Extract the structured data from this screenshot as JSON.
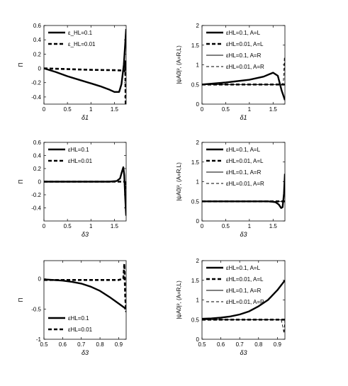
{
  "chart_data": [
    {
      "type": "line",
      "id": "p1",
      "xlabel": "δ1",
      "ylabel": "Π",
      "xlim": [
        0,
        1.75
      ],
      "ylim": [
        -0.5,
        0.6
      ],
      "xticks": [
        "0",
        "0.5",
        "1",
        "1.5"
      ],
      "xtick_values": [
        0,
        0.5,
        1,
        1.5
      ],
      "yticks": [
        "0.6",
        "0.4",
        "0.2",
        "0",
        "-0.2",
        "-0.4"
      ],
      "ytick_values": [
        0.6,
        0.4,
        0.2,
        0,
        -0.2,
        -0.4
      ],
      "legend_position": "top-left",
      "series": [
        {
          "name": "ε_HL=0.1",
          "style": "thick-solid",
          "x": [
            0,
            0.25,
            0.5,
            0.75,
            1.0,
            1.2,
            1.4,
            1.5,
            1.6,
            1.65,
            1.7,
            1.73,
            1.75
          ],
          "y": [
            0,
            -0.05,
            -0.11,
            -0.16,
            -0.21,
            -0.25,
            -0.3,
            -0.33,
            -0.33,
            -0.22,
            0.05,
            0.35,
            0.55
          ]
        },
        {
          "name": "ε_HL=0.01",
          "style": "thick-dashed",
          "x": [
            0,
            0.5,
            1.0,
            1.5,
            1.7,
            1.72,
            1.73,
            1.74,
            1.75
          ],
          "y": [
            0,
            -0.01,
            -0.02,
            -0.025,
            -0.03,
            -0.04,
            0.1,
            -0.5,
            -0.5
          ]
        }
      ]
    },
    {
      "type": "line",
      "id": "p2",
      "xlabel": "δ1",
      "ylabel": "|ψA0|², (A=R,L)",
      "xlim": [
        0,
        1.75
      ],
      "ylim": [
        0,
        2
      ],
      "xticks": [
        "0",
        "0.5",
        "1",
        "1.5"
      ],
      "xtick_values": [
        0,
        0.5,
        1,
        1.5
      ],
      "yticks": [
        "2",
        "1.5",
        "1",
        "0.5",
        "0"
      ],
      "ytick_values": [
        2,
        1.5,
        1,
        0.5,
        0
      ],
      "legend_position": "top-left",
      "series": [
        {
          "name": "εHL=0.1, A=L",
          "style": "thick-solid",
          "x": [
            0,
            0.5,
            1.0,
            1.3,
            1.5,
            1.6,
            1.68,
            1.75
          ],
          "y": [
            0.5,
            0.55,
            0.62,
            0.7,
            0.8,
            0.72,
            0.35,
            0.1
          ]
        },
        {
          "name": "εHL=0.01, A=L",
          "style": "thick-dashed",
          "x": [
            0,
            0.5,
            1.0,
            1.5,
            1.73,
            1.74,
            1.75
          ],
          "y": [
            0.5,
            0.5,
            0.5,
            0.5,
            0.5,
            0.45,
            0.5
          ]
        },
        {
          "name": "εHL=0.1, A=R",
          "style": "thin-solid",
          "x": [
            0,
            0.5,
            1.0,
            1.5,
            1.65,
            1.75
          ],
          "y": [
            0.5,
            0.5,
            0.5,
            0.5,
            0.5,
            0.5
          ]
        },
        {
          "name": "εHL=0.01, A=R",
          "style": "thin-dashed",
          "x": [
            0,
            0.5,
            1.0,
            1.5,
            1.7,
            1.72,
            1.74,
            1.75
          ],
          "y": [
            0.5,
            0.5,
            0.5,
            0.5,
            0.5,
            0.62,
            1.2,
            0.5
          ]
        }
      ]
    },
    {
      "type": "line",
      "id": "p3",
      "xlabel": "δ3",
      "ylabel": "Π",
      "xlim": [
        0,
        1.75
      ],
      "ylim": [
        -0.6,
        0.6
      ],
      "xticks": [
        "0",
        "0.5",
        "1",
        "1.5"
      ],
      "xtick_values": [
        0,
        0.5,
        1,
        1.5
      ],
      "yticks": [
        "0.6",
        "0.4",
        "0.2",
        "0",
        "-0.2",
        "-0.4"
      ],
      "ytick_values": [
        0.6,
        0.4,
        0.2,
        0,
        -0.2,
        -0.4
      ],
      "legend_position": "top-left",
      "series": [
        {
          "name": "εHL=0.1",
          "style": "thick-solid",
          "x": [
            0,
            0.5,
            1.0,
            1.4,
            1.55,
            1.62,
            1.66,
            1.69,
            1.71,
            1.73,
            1.75
          ],
          "y": [
            0,
            0,
            0,
            0,
            0.01,
            0.05,
            0.15,
            0.22,
            0.1,
            -0.25,
            -0.52
          ]
        },
        {
          "name": "εHL=0.01",
          "style": "thick-dashed",
          "x": [
            0,
            0.5,
            1.0,
            1.5,
            1.72,
            1.74,
            1.75
          ],
          "y": [
            0,
            0,
            0,
            0,
            0,
            -0.1,
            0
          ]
        }
      ]
    },
    {
      "type": "line",
      "id": "p4",
      "xlabel": "δ3",
      "ylabel": "|ψA0|², (A=R,L)",
      "xlim": [
        0,
        1.75
      ],
      "ylim": [
        0,
        2
      ],
      "xticks": [
        "0",
        "0.5",
        "1",
        "1.5"
      ],
      "xtick_values": [
        0,
        0.5,
        1,
        1.5
      ],
      "yticks": [
        "2",
        "1.5",
        "1",
        "0.5",
        "0"
      ],
      "ytick_values": [
        2,
        1.5,
        1,
        0.5,
        0
      ],
      "legend_position": "top-left",
      "series": [
        {
          "name": "εHL=0.1, A=L",
          "style": "thick-solid",
          "x": [
            0,
            0.5,
            1.0,
            1.4,
            1.55,
            1.62,
            1.67,
            1.7,
            1.73,
            1.75
          ],
          "y": [
            0.5,
            0.5,
            0.5,
            0.5,
            0.48,
            0.42,
            0.33,
            0.35,
            0.7,
            1.2
          ]
        },
        {
          "name": "εHL=0.01, A=L",
          "style": "thick-dashed",
          "x": [
            0,
            0.5,
            1.0,
            1.5,
            1.75
          ],
          "y": [
            0.5,
            0.5,
            0.5,
            0.5,
            0.5
          ]
        },
        {
          "name": "εHL=0.1, A=R",
          "style": "thin-solid",
          "x": [
            0,
            0.5,
            1.0,
            1.5,
            1.75
          ],
          "y": [
            0.5,
            0.5,
            0.5,
            0.5,
            0.5
          ]
        },
        {
          "name": "εHL=0.01, A=R",
          "style": "thin-dashed",
          "x": [
            0,
            0.5,
            1.0,
            1.5,
            1.75
          ],
          "y": [
            0.5,
            0.5,
            0.5,
            0.5,
            0.5
          ]
        }
      ]
    },
    {
      "type": "line",
      "id": "p5",
      "xlabel": "δ3",
      "ylabel": "Π",
      "xlim": [
        0.5,
        0.94
      ],
      "ylim": [
        -1,
        0.3
      ],
      "xticks": [
        "0.5",
        "0.6",
        "0.7",
        "0.8",
        "0.9"
      ],
      "xtick_values": [
        0.5,
        0.6,
        0.7,
        0.8,
        0.9
      ],
      "yticks": [
        "0",
        "-0.5",
        "-1"
      ],
      "ytick_values": [
        0,
        -0.5,
        -1
      ],
      "legend_position": "bottom-left",
      "series": [
        {
          "name": "εHL=0.1",
          "style": "thick-solid",
          "x": [
            0.5,
            0.55,
            0.6,
            0.65,
            0.7,
            0.75,
            0.8,
            0.85,
            0.9,
            0.94
          ],
          "y": [
            -0.01,
            -0.02,
            -0.03,
            -0.05,
            -0.08,
            -0.13,
            -0.2,
            -0.3,
            -0.41,
            -0.5
          ]
        },
        {
          "name": "εHL=0.01",
          "style": "thick-dashed",
          "x": [
            0.5,
            0.6,
            0.7,
            0.8,
            0.9,
            0.925,
            0.93,
            0.935,
            0.94
          ],
          "y": [
            -0.02,
            -0.02,
            -0.02,
            -0.02,
            -0.02,
            0.0,
            0.25,
            -0.3,
            -0.55
          ]
        }
      ]
    },
    {
      "type": "line",
      "id": "p6",
      "xlabel": "δ3",
      "ylabel": "|ψA0|², (A=R,L)",
      "xlim": [
        0.5,
        0.94
      ],
      "ylim": [
        0,
        2
      ],
      "xticks": [
        "0.5",
        "0.6",
        "0.7",
        "0.8",
        "0.9"
      ],
      "xtick_values": [
        0.5,
        0.6,
        0.7,
        0.8,
        0.9
      ],
      "yticks": [
        "2",
        "1.5",
        "1",
        "0.5",
        "0"
      ],
      "ytick_values": [
        2,
        1.5,
        1,
        0.5,
        0
      ],
      "legend_position": "top-left",
      "series": [
        {
          "name": "εHL=0.1, A=L",
          "style": "thick-solid",
          "x": [
            0.5,
            0.55,
            0.6,
            0.65,
            0.7,
            0.75,
            0.8,
            0.85,
            0.9,
            0.94
          ],
          "y": [
            0.52,
            0.53,
            0.55,
            0.58,
            0.63,
            0.71,
            0.84,
            1.0,
            1.25,
            1.5
          ]
        },
        {
          "name": "εHL=0.01, A=L",
          "style": "thick-dashed",
          "x": [
            0.5,
            0.6,
            0.7,
            0.8,
            0.9,
            0.94
          ],
          "y": [
            0.5,
            0.5,
            0.5,
            0.5,
            0.5,
            0.5
          ]
        },
        {
          "name": "εHL=0.1, A=R",
          "style": "thin-solid",
          "x": [
            0.5,
            0.6,
            0.7,
            0.8,
            0.9,
            0.94
          ],
          "y": [
            0.5,
            0.5,
            0.5,
            0.5,
            0.5,
            0.5
          ]
        },
        {
          "name": "εHL=0.01, A=R",
          "style": "thin-dashed",
          "x": [
            0.5,
            0.6,
            0.7,
            0.8,
            0.9,
            0.92,
            0.93,
            0.935,
            0.94
          ],
          "y": [
            0.5,
            0.5,
            0.5,
            0.5,
            0.5,
            0.5,
            0.3,
            0.15,
            0.5
          ]
        }
      ]
    }
  ]
}
